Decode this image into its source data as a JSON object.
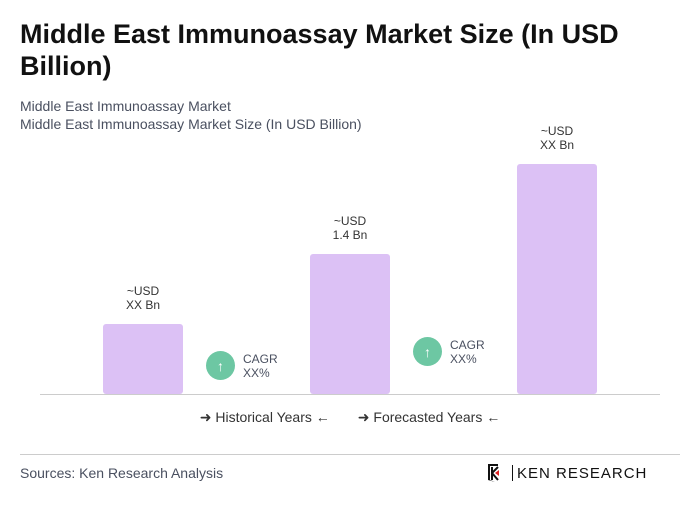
{
  "title": "Middle East Immunoassay Market Size (In USD Billion)",
  "subtitle1": "Middle East Immunoassay Market",
  "subtitle2": "Middle East Immunoassay Market Size (In USD Billion)",
  "chart_data": {
    "type": "bar",
    "categories": [
      "",
      "",
      ""
    ],
    "values": [
      0.7,
      1.4,
      2.3
    ],
    "data_labels": [
      [
        "~USD",
        "XX Bn"
      ],
      [
        "~USD",
        "1.4 Bn"
      ],
      [
        "~USD",
        "XX Bn"
      ]
    ],
    "bar_color": "#dcc1f5",
    "cagr": [
      {
        "label": "CAGR",
        "value": "XX%"
      },
      {
        "label": "CAGR",
        "value": "XX%"
      }
    ],
    "cagr_color": "#6dc7a3",
    "legend": [
      "Historical Years",
      "Forecasted Years"
    ]
  },
  "sources": "Sources: Ken Research Analysis",
  "logo": "KEN RESEARCH"
}
